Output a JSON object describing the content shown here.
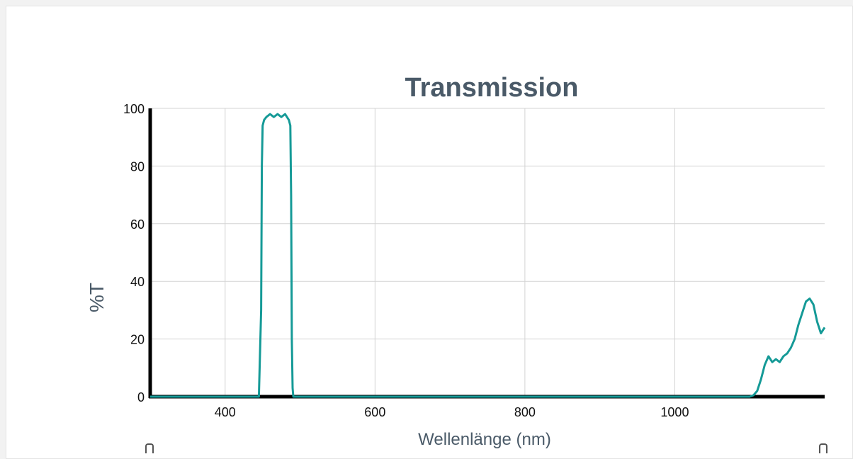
{
  "chart_data": {
    "type": "line",
    "title": "Transmission",
    "xlabel": "Wellenlänge (nm)",
    "ylabel": "%T",
    "xlim": [
      300,
      1200
    ],
    "ylim": [
      0,
      100
    ],
    "x_ticks": [
      400,
      600,
      800,
      1000
    ],
    "y_ticks": [
      0,
      20,
      40,
      60,
      80,
      100
    ],
    "grid": true,
    "line_color": "#159a97",
    "axis_color": "#000000",
    "series": [
      {
        "x": [
          300,
          400,
          445,
          448,
          449,
          450,
          452,
          455,
          460,
          465,
          470,
          475,
          480,
          485,
          487,
          488,
          489,
          490,
          491,
          495,
          600,
          800,
          1000,
          1100,
          1105,
          1110,
          1115,
          1120,
          1125,
          1130,
          1135,
          1140,
          1145,
          1150,
          1155,
          1160,
          1165,
          1170,
          1175,
          1180,
          1185,
          1190,
          1195,
          1200
        ],
        "y": [
          0,
          0,
          0,
          30,
          80,
          94,
          96,
          97,
          98,
          97,
          98,
          97,
          98,
          96,
          94,
          70,
          20,
          3,
          0,
          0,
          0,
          0,
          0,
          0,
          0.5,
          2,
          6,
          11,
          14,
          12,
          13,
          12,
          14,
          15,
          17,
          20,
          25,
          29,
          33,
          34,
          32,
          26,
          22,
          24
        ]
      }
    ]
  }
}
